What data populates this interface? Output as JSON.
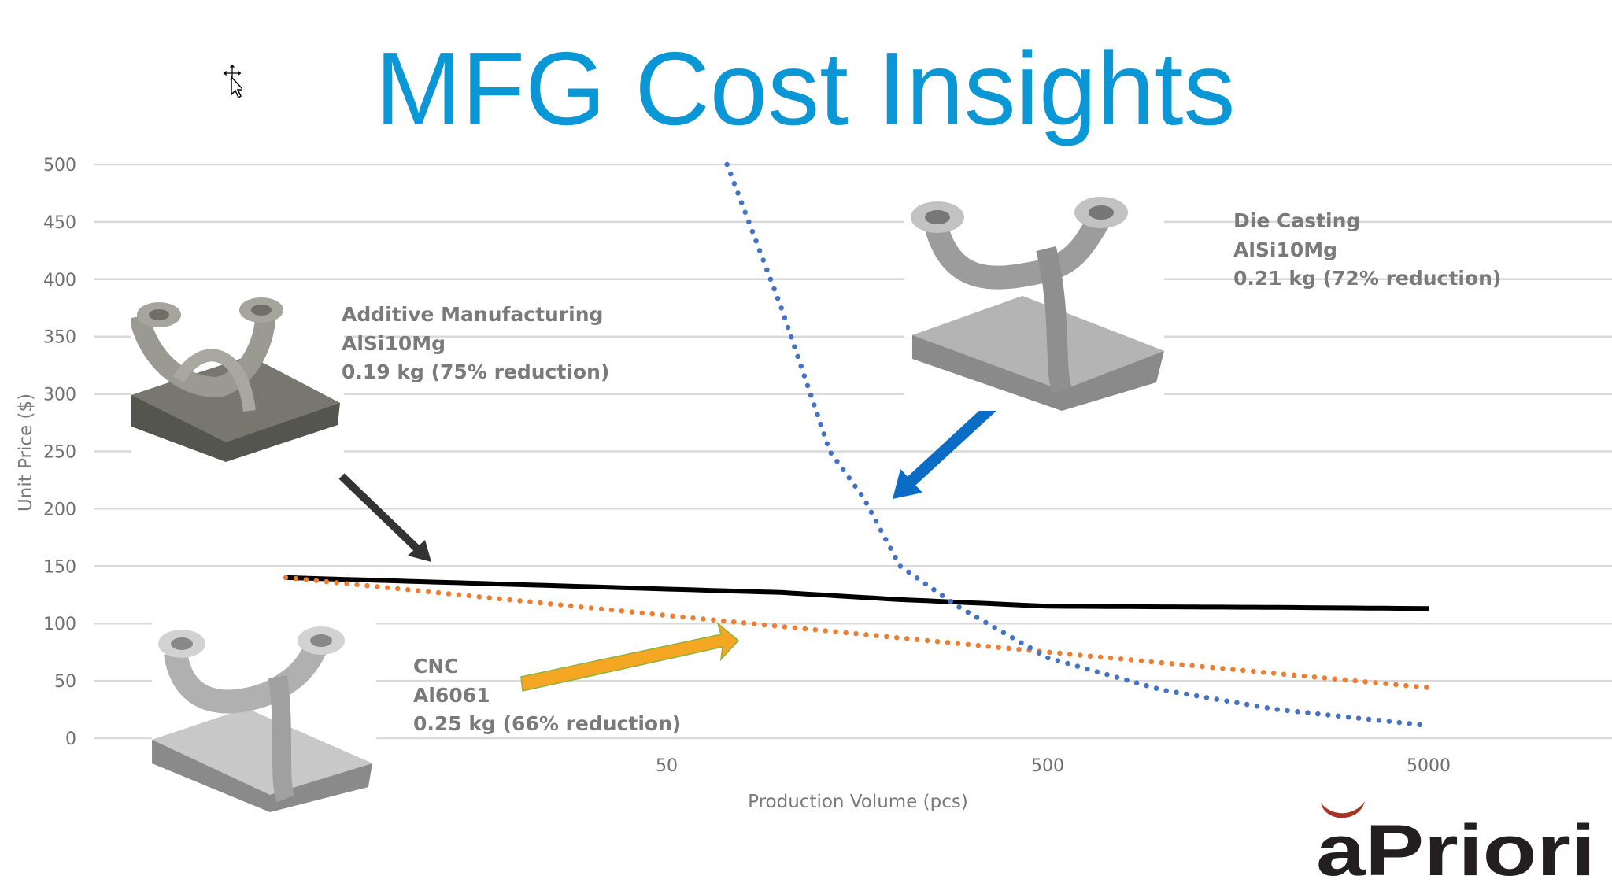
{
  "title": "MFG Cost Insights",
  "logo_text": "aPriori",
  "annotations": {
    "additive": [
      "Additive Manufacturing",
      "AlSi10Mg",
      "0.19 kg (75% reduction)"
    ],
    "die_casting": [
      "Die Casting",
      "AlSi10Mg",
      "0.21 kg (72% reduction)"
    ],
    "cnc": [
      "CNC",
      "Al6061",
      "0.25 kg (66% reduction)"
    ]
  },
  "colors": {
    "title": "#0b96d5",
    "additive_line": "#000000",
    "cnc_line": "#ed7d31",
    "die_casting_line": "#4472c4",
    "arrow_additive": "#333333",
    "arrow_die_casting": "#0a6cc4",
    "arrow_cnc": "#f5a623",
    "logo_accent": "#a83224"
  },
  "chart_data": {
    "type": "line",
    "title": "",
    "xlabel": "Production Volume (pcs)",
    "ylabel": "Unit Price ($)",
    "x_scale": "log",
    "xlim": [
      5,
      5000
    ],
    "ylim": [
      0,
      500
    ],
    "x_ticks": [
      50,
      500,
      5000
    ],
    "y_ticks": [
      0,
      50,
      100,
      150,
      200,
      250,
      300,
      350,
      400,
      450,
      500
    ],
    "grid": "horizontal",
    "legend": "none",
    "series": [
      {
        "key": "additive",
        "style": "solid",
        "points": [
          [
            5,
            140
          ],
          [
            10,
            137
          ],
          [
            20,
            134
          ],
          [
            50,
            130
          ],
          [
            100,
            127
          ],
          [
            200,
            121
          ],
          [
            500,
            115
          ],
          [
            1000,
            114.5
          ],
          [
            2000,
            114
          ],
          [
            5000,
            113
          ]
        ]
      },
      {
        "key": "cnc",
        "style": "dotted",
        "points": [
          [
            5,
            140
          ],
          [
            50,
            107
          ],
          [
            500,
            75
          ],
          [
            5000,
            44
          ]
        ]
      },
      {
        "key": "die_casting",
        "style": "dotted",
        "points": [
          [
            72,
            500
          ],
          [
            100,
            375
          ],
          [
            134,
            250
          ],
          [
            164,
            210
          ],
          [
            205,
            150
          ],
          [
            290,
            115
          ],
          [
            500,
            70
          ],
          [
            1000,
            42
          ],
          [
            2000,
            25
          ],
          [
            5000,
            11
          ]
        ]
      }
    ]
  }
}
